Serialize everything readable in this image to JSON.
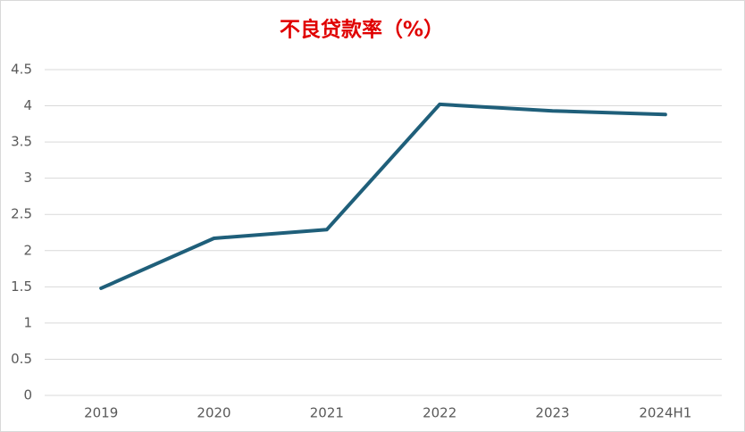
{
  "chart_data": {
    "type": "line",
    "title": "不良贷款率（%）",
    "categories": [
      "2019",
      "2020",
      "2021",
      "2022",
      "2023",
      "2024H1"
    ],
    "values": [
      1.48,
      2.17,
      2.29,
      4.02,
      3.93,
      3.88
    ],
    "color": "#1f5f7a",
    "ylim": [
      0,
      4.5
    ],
    "yticks": [
      0,
      0.5,
      1,
      1.5,
      2,
      2.5,
      3,
      3.5,
      4,
      4.5
    ],
    "grid": true
  }
}
